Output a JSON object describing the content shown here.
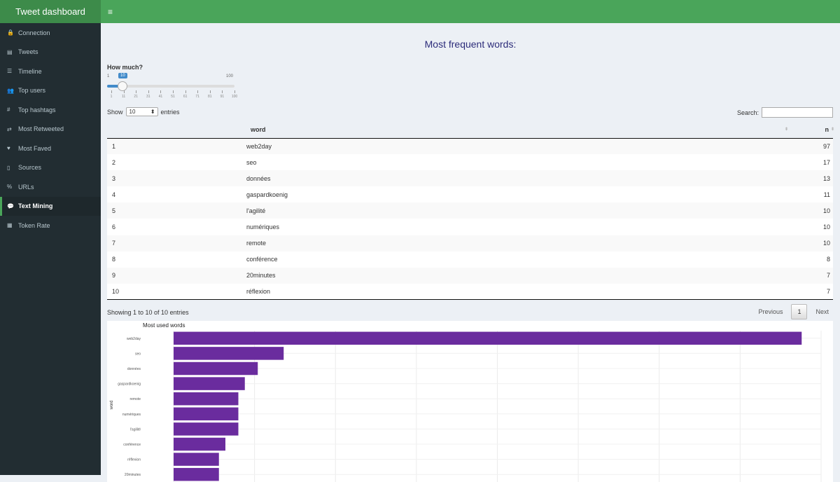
{
  "app": {
    "title": "Tweet dashboard",
    "menu_icon": "hamburger-icon"
  },
  "sidebar": {
    "items": [
      {
        "label": "Connection",
        "icon": "🔒",
        "icon_name": "lock-icon"
      },
      {
        "label": "Tweets",
        "icon": "▤",
        "icon_name": "table-icon"
      },
      {
        "label": "Timeline",
        "icon": "☰",
        "icon_name": "list-icon"
      },
      {
        "label": "Top users",
        "icon": "👥",
        "icon_name": "users-icon"
      },
      {
        "label": "Top hashtags",
        "icon": "#",
        "icon_name": "hashtag-icon"
      },
      {
        "label": "Most Retweeted",
        "icon": "⇄",
        "icon_name": "retweet-icon"
      },
      {
        "label": "Most Faved",
        "icon": "♥",
        "icon_name": "heart-icon"
      },
      {
        "label": "Sources",
        "icon": "▯",
        "icon_name": "mobile-icon"
      },
      {
        "label": "URLs",
        "icon": "%",
        "icon_name": "link-icon"
      },
      {
        "label": "Text Mining",
        "icon": "💬",
        "icon_name": "comments-icon"
      },
      {
        "label": "Token Rate",
        "icon": "▦",
        "icon_name": "table-icon"
      }
    ],
    "active_index": 9
  },
  "main": {
    "title": "Most frequent words:",
    "slider": {
      "label": "How much?",
      "min": "1",
      "max": "100",
      "value": "10",
      "ticks": [
        "1",
        "11",
        "21",
        "31",
        "41",
        "51",
        "61",
        "71",
        "81",
        "91",
        "100"
      ]
    },
    "table_controls": {
      "show_label": "Show",
      "entries_value": "10",
      "entries_label": "entries",
      "search_label": "Search:",
      "search_value": ""
    },
    "table": {
      "headers": [
        "",
        "word",
        "n"
      ],
      "rows": [
        [
          "1",
          "web2day",
          "97"
        ],
        [
          "2",
          "seo",
          "17"
        ],
        [
          "3",
          "données",
          "13"
        ],
        [
          "4",
          "gaspardkoenig",
          "11"
        ],
        [
          "5",
          "l'agilité",
          "10"
        ],
        [
          "6",
          "numériques",
          "10"
        ],
        [
          "7",
          "remote",
          "10"
        ],
        [
          "8",
          "conférence",
          "8"
        ],
        [
          "9",
          "20minutes",
          "7"
        ],
        [
          "10",
          "réflexion",
          "7"
        ]
      ]
    },
    "info": "Showing 1 to 10 of 10 entries",
    "pagination": {
      "previous": "Previous",
      "current": "1",
      "next": "Next"
    }
  },
  "chart_data": {
    "type": "bar",
    "orientation": "horizontal",
    "title": "Most used words",
    "ylabel": "word",
    "xlabel": "",
    "categories": [
      "web2day",
      "seo",
      "données",
      "gaspardkoenig",
      "remote",
      "numériques",
      "l'agilité",
      "conférence",
      "réflexion",
      "20minutes"
    ],
    "values": [
      97,
      17,
      13,
      11,
      10,
      10,
      10,
      8,
      7,
      7
    ],
    "xlim": [
      0,
      100
    ],
    "bar_color": "#6a2c9e",
    "grid": true
  },
  "colors": {
    "header": "#4aa55a",
    "brand": "#3d8b4a",
    "sidebar": "#222d32",
    "title": "#2c2c7a",
    "bar": "#6a2c9e"
  }
}
